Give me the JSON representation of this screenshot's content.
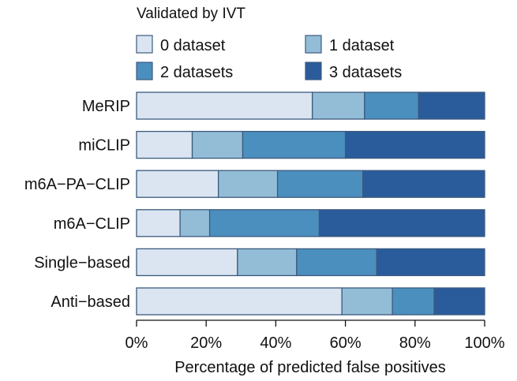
{
  "chart_data": {
    "type": "bar",
    "orientation": "horizontal",
    "stacked": true,
    "categories": [
      "MeRIP",
      "miCLIP",
      "m6A−PA−CLIP",
      "m6A−CLIP",
      "Single−based",
      "Anti−based"
    ],
    "series": [
      {
        "name": "0 dataset",
        "color": "#dae5f1",
        "values": [
          50.5,
          16,
          23.5,
          12.5,
          29,
          59
        ]
      },
      {
        "name": "1 dataset",
        "color": "#93bdd7",
        "values": [
          15,
          14.5,
          17,
          8.5,
          17,
          14.5
        ]
      },
      {
        "name": "2 datasets",
        "color": "#4b8fbe",
        "values": [
          15.5,
          29.5,
          24.5,
          31.5,
          23,
          12
        ]
      },
      {
        "name": "3 datasets",
        "color": "#2a5c9c",
        "values": [
          19,
          40,
          35,
          47.5,
          31,
          14.5
        ]
      }
    ],
    "xlabel": "Percentage of predicted false positives",
    "xlim": [
      0,
      100
    ],
    "xticks": [
      "0%",
      "20%",
      "40%",
      "60%",
      "80%",
      "100%"
    ],
    "legend": {
      "title": "Validated by IVT",
      "placement": "top"
    },
    "colors": {
      "bar_edge": "#3c5a7e",
      "axis": "#111111"
    }
  }
}
